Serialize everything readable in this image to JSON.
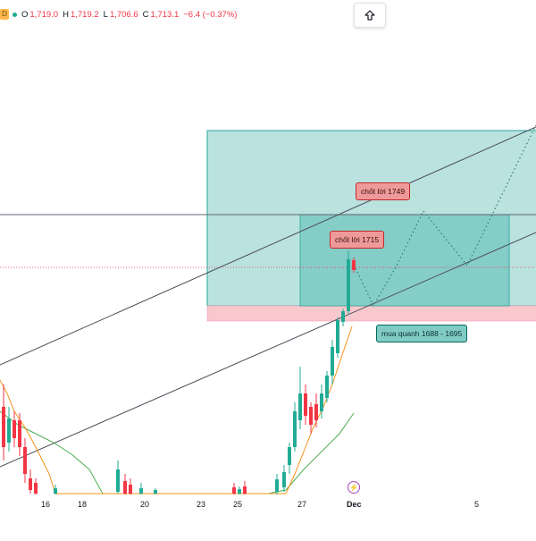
{
  "header": {
    "interval_badge": "D",
    "open_label": "O",
    "open": "1,719.0",
    "high_label": "H",
    "high": "1,719.2",
    "low_label": "L",
    "low": "1,706.6",
    "close_label": "C",
    "close": "1,713.1",
    "change": "−6.4 (−0.37%)"
  },
  "xaxis": {
    "labels": [
      "16",
      "18",
      "20",
      "23",
      "25",
      "27",
      "Dec",
      "5"
    ]
  },
  "annotations": {
    "take_profit_1": "chốt lời 1715",
    "take_profit_2": "chốt lời 1749",
    "buy_zone": "mua quanh 1688 - 1695"
  },
  "icons": {
    "scroll_button": "arrow-up-icon",
    "event": "lightning-event-icon"
  },
  "colors": {
    "up": "#22ab94",
    "down": "#f23645",
    "zone_fill": "#b2dfdb",
    "zone_inner": "#80cbc4",
    "stop_fill": "#f8c8cc",
    "ma_orange": "#f7931a",
    "ma_green": "#4caf50"
  }
}
